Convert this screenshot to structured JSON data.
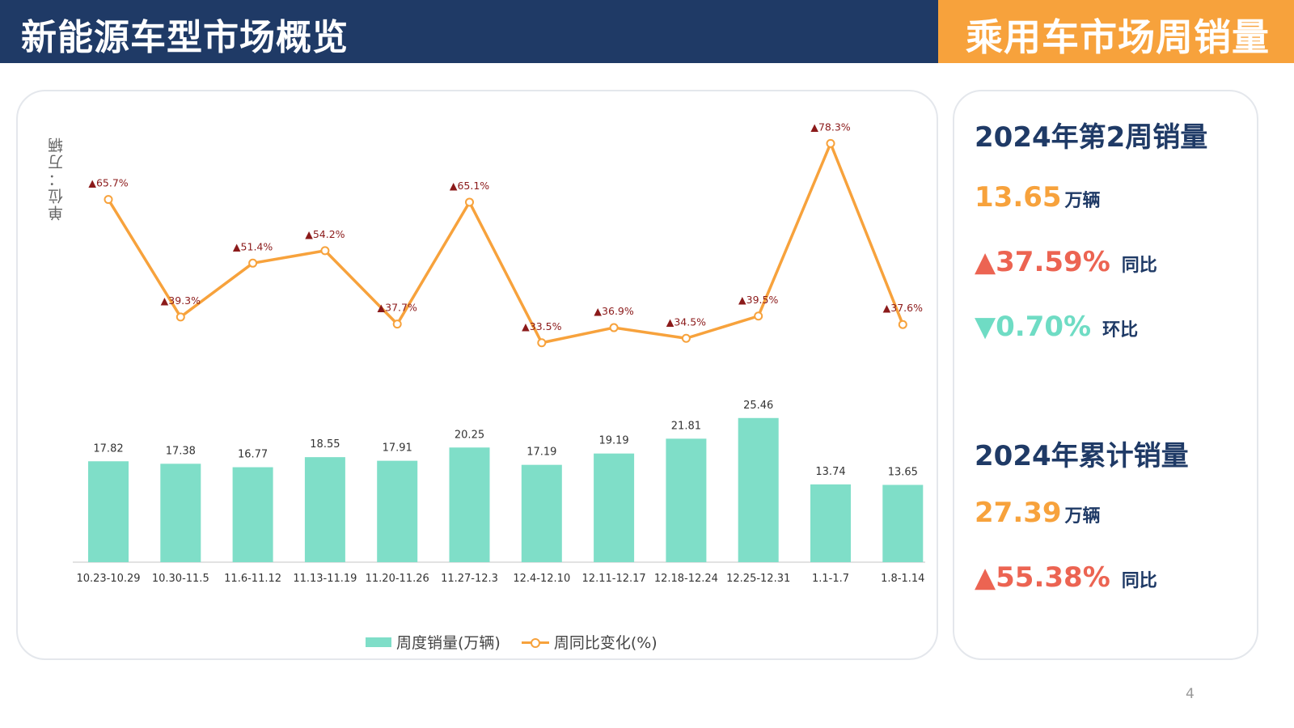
{
  "header": {
    "left_title": "新能源车型市场概览",
    "right_title": "乘用车市场周销量"
  },
  "chart": {
    "unit_label": "单位：万辆",
    "legend": {
      "bar": "周度销量(万辆)",
      "line": "周同比变化(%)"
    }
  },
  "chart_data": {
    "type": "bar",
    "categories": [
      "10.23-10.29",
      "10.30-11.5",
      "11.6-11.12",
      "11.13-11.19",
      "11.20-11.26",
      "11.27-12.3",
      "12.4-12.10",
      "12.11-12.17",
      "12.18-12.24",
      "12.25-12.31",
      "1.1-1.7",
      "1.8-1.14"
    ],
    "series": [
      {
        "name": "周度销量(万辆)",
        "type": "bar",
        "values": [
          17.82,
          17.38,
          16.77,
          18.55,
          17.91,
          20.25,
          17.19,
          19.19,
          21.81,
          25.46,
          13.74,
          13.65
        ],
        "labels": [
          "17.82",
          "17.38",
          "16.77",
          "18.55",
          "17.91",
          "20.25",
          "17.19",
          "19.19",
          "21.81",
          "25.46",
          "13.74",
          "13.65"
        ]
      },
      {
        "name": "周同比变化(%)",
        "type": "line",
        "values": [
          65.7,
          39.3,
          51.4,
          54.2,
          37.7,
          65.1,
          33.5,
          36.9,
          34.5,
          39.5,
          78.3,
          37.6
        ],
        "labels": [
          "▲65.7%",
          "▲39.3%",
          "▲51.4%",
          "▲54.2%",
          "▲37.7%",
          "▲65.1%",
          "▲33.5%",
          "▲36.9%",
          "▲34.5%",
          "▲39.5%",
          "▲78.3%",
          "▲37.6%"
        ]
      }
    ],
    "ylabel": "单位：万辆",
    "bar_ylim": [
      0,
      26
    ],
    "line_ylim": [
      0,
      90
    ],
    "grid": false,
    "legend_position": "bottom-center",
    "colors": {
      "bar": "#7fdec8",
      "line": "#f7a23c",
      "line_label": "#8b1a1a"
    }
  },
  "summary": {
    "week_heading": "2024年第2周销量",
    "week_value": "13.65",
    "week_unit": "万辆",
    "week_yoy": "▲37.59%",
    "week_yoy_tag": "同比",
    "week_mom": "▼0.70%",
    "week_mom_tag": "环比",
    "ytd_heading": "2024年累计销量",
    "ytd_value": "27.39",
    "ytd_unit": "万辆",
    "ytd_yoy": "▲55.38%",
    "ytd_yoy_tag": "同比"
  },
  "page": {
    "number": "4"
  }
}
